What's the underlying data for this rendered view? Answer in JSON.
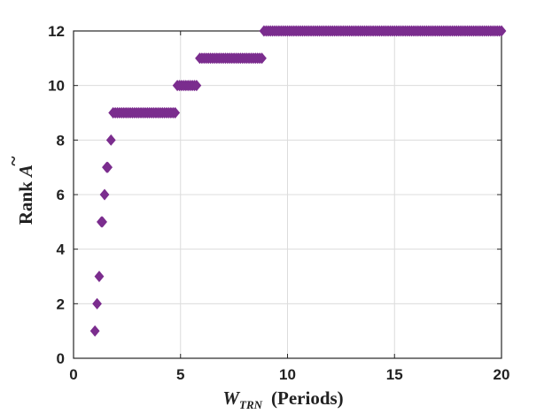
{
  "chart_data": {
    "type": "scatter",
    "xlabel": {
      "main": "W",
      "sub": "TRN",
      "rest": "(Periods)"
    },
    "ylabel": {
      "prefix": "Rank ",
      "var": "A",
      "accent": "~"
    },
    "xlim": [
      0,
      20
    ],
    "ylim": [
      0,
      12
    ],
    "xticks": [
      0,
      5,
      10,
      15,
      20
    ],
    "yticks": [
      0,
      2,
      4,
      6,
      8,
      10,
      12
    ],
    "grid": true,
    "marker": "diamond",
    "color": "#7b2d8e",
    "series": [
      {
        "points": [
          [
            1.0,
            1
          ],
          [
            1.1,
            2
          ],
          [
            1.2,
            3
          ],
          [
            1.3,
            5
          ],
          [
            1.35,
            5
          ],
          [
            1.45,
            6
          ],
          [
            1.55,
            7
          ],
          [
            1.6,
            7
          ],
          [
            1.75,
            8
          ],
          [
            1.85,
            9
          ],
          [
            1.95,
            9
          ],
          [
            2.05,
            9
          ],
          [
            2.15,
            9
          ],
          [
            2.25,
            9
          ],
          [
            2.35,
            9
          ],
          [
            2.45,
            9
          ],
          [
            2.55,
            9
          ],
          [
            2.65,
            9
          ],
          [
            2.75,
            9
          ],
          [
            2.85,
            9
          ],
          [
            2.95,
            9
          ],
          [
            3.05,
            9
          ],
          [
            3.15,
            9
          ],
          [
            3.25,
            9
          ],
          [
            3.35,
            9
          ],
          [
            3.45,
            9
          ],
          [
            3.55,
            9
          ],
          [
            3.65,
            9
          ],
          [
            3.75,
            9
          ],
          [
            3.85,
            9
          ],
          [
            3.95,
            9
          ],
          [
            4.05,
            9
          ],
          [
            4.15,
            9
          ],
          [
            4.25,
            9
          ],
          [
            4.35,
            9
          ],
          [
            4.45,
            9
          ],
          [
            4.55,
            9
          ],
          [
            4.65,
            9
          ],
          [
            4.75,
            9
          ],
          [
            4.85,
            10
          ],
          [
            4.95,
            10
          ],
          [
            5.05,
            10
          ],
          [
            5.15,
            10
          ],
          [
            5.25,
            10
          ],
          [
            5.35,
            10
          ],
          [
            5.45,
            10
          ],
          [
            5.55,
            10
          ],
          [
            5.65,
            10
          ],
          [
            5.75,
            10
          ],
          [
            5.9,
            11
          ],
          [
            6.0,
            11
          ],
          [
            6.1,
            11
          ],
          [
            6.2,
            11
          ],
          [
            6.3,
            11
          ],
          [
            6.4,
            11
          ],
          [
            6.5,
            11
          ],
          [
            6.6,
            11
          ],
          [
            6.7,
            11
          ],
          [
            6.8,
            11
          ],
          [
            6.9,
            11
          ],
          [
            7.0,
            11
          ],
          [
            7.1,
            11
          ],
          [
            7.2,
            11
          ],
          [
            7.3,
            11
          ],
          [
            7.4,
            11
          ],
          [
            7.5,
            11
          ],
          [
            7.6,
            11
          ],
          [
            7.7,
            11
          ],
          [
            7.8,
            11
          ],
          [
            7.9,
            11
          ],
          [
            8.0,
            11
          ],
          [
            8.1,
            11
          ],
          [
            8.2,
            11
          ],
          [
            8.3,
            11
          ],
          [
            8.4,
            11
          ],
          [
            8.5,
            11
          ],
          [
            8.6,
            11
          ],
          [
            8.7,
            11
          ],
          [
            8.8,
            11
          ],
          [
            8.9,
            12
          ],
          [
            9.0,
            12
          ],
          [
            9.1,
            12
          ],
          [
            9.2,
            12
          ],
          [
            9.3,
            12
          ],
          [
            9.4,
            12
          ],
          [
            9.5,
            12
          ],
          [
            9.6,
            12
          ],
          [
            9.7,
            12
          ],
          [
            9.8,
            12
          ],
          [
            9.9,
            12
          ],
          [
            10.0,
            12
          ],
          [
            10.1,
            12
          ],
          [
            10.2,
            12
          ],
          [
            10.3,
            12
          ],
          [
            10.4,
            12
          ],
          [
            10.5,
            12
          ],
          [
            10.6,
            12
          ],
          [
            10.7,
            12
          ],
          [
            10.8,
            12
          ],
          [
            10.9,
            12
          ],
          [
            11.0,
            12
          ],
          [
            11.1,
            12
          ],
          [
            11.2,
            12
          ],
          [
            11.3,
            12
          ],
          [
            11.4,
            12
          ],
          [
            11.5,
            12
          ],
          [
            11.6,
            12
          ],
          [
            11.7,
            12
          ],
          [
            11.8,
            12
          ],
          [
            11.9,
            12
          ],
          [
            12.0,
            12
          ],
          [
            12.1,
            12
          ],
          [
            12.2,
            12
          ],
          [
            12.3,
            12
          ],
          [
            12.4,
            12
          ],
          [
            12.5,
            12
          ],
          [
            12.6,
            12
          ],
          [
            12.7,
            12
          ],
          [
            12.8,
            12
          ],
          [
            12.9,
            12
          ],
          [
            13.0,
            12
          ],
          [
            13.1,
            12
          ],
          [
            13.2,
            12
          ],
          [
            13.3,
            12
          ],
          [
            13.4,
            12
          ],
          [
            13.5,
            12
          ],
          [
            13.6,
            12
          ],
          [
            13.7,
            12
          ],
          [
            13.8,
            12
          ],
          [
            13.9,
            12
          ],
          [
            14.0,
            12
          ],
          [
            14.1,
            12
          ],
          [
            14.2,
            12
          ],
          [
            14.3,
            12
          ],
          [
            14.4,
            12
          ],
          [
            14.5,
            12
          ],
          [
            14.6,
            12
          ],
          [
            14.7,
            12
          ],
          [
            14.8,
            12
          ],
          [
            14.9,
            12
          ],
          [
            15.0,
            12
          ],
          [
            15.1,
            12
          ],
          [
            15.2,
            12
          ],
          [
            15.3,
            12
          ],
          [
            15.4,
            12
          ],
          [
            15.5,
            12
          ],
          [
            15.6,
            12
          ],
          [
            15.7,
            12
          ],
          [
            15.8,
            12
          ],
          [
            15.9,
            12
          ],
          [
            16.0,
            12
          ],
          [
            16.1,
            12
          ],
          [
            16.2,
            12
          ],
          [
            16.3,
            12
          ],
          [
            16.4,
            12
          ],
          [
            16.5,
            12
          ],
          [
            16.6,
            12
          ],
          [
            16.7,
            12
          ],
          [
            16.8,
            12
          ],
          [
            16.9,
            12
          ],
          [
            17.0,
            12
          ],
          [
            17.1,
            12
          ],
          [
            17.2,
            12
          ],
          [
            17.3,
            12
          ],
          [
            17.4,
            12
          ],
          [
            17.5,
            12
          ],
          [
            17.6,
            12
          ],
          [
            17.7,
            12
          ],
          [
            17.8,
            12
          ],
          [
            17.9,
            12
          ],
          [
            18.0,
            12
          ],
          [
            18.1,
            12
          ],
          [
            18.2,
            12
          ],
          [
            18.3,
            12
          ],
          [
            18.4,
            12
          ],
          [
            18.5,
            12
          ],
          [
            18.6,
            12
          ],
          [
            18.7,
            12
          ],
          [
            18.8,
            12
          ],
          [
            18.9,
            12
          ],
          [
            19.0,
            12
          ],
          [
            19.1,
            12
          ],
          [
            19.2,
            12
          ],
          [
            19.3,
            12
          ],
          [
            19.4,
            12
          ],
          [
            19.5,
            12
          ],
          [
            19.6,
            12
          ],
          [
            19.7,
            12
          ],
          [
            19.8,
            12
          ],
          [
            19.9,
            12
          ],
          [
            20.0,
            12
          ]
        ]
      }
    ]
  }
}
